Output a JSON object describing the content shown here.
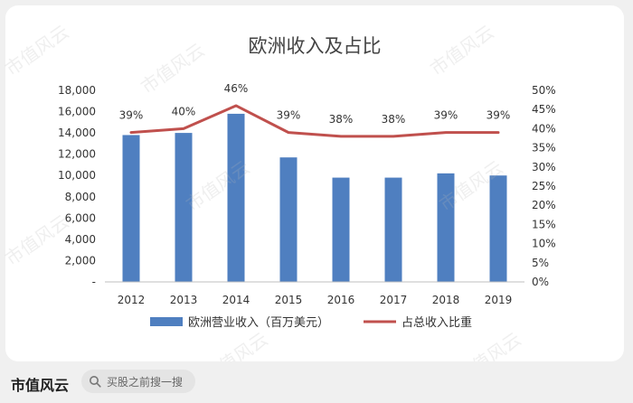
{
  "chart_data": {
    "type": "bar+line",
    "title": "欧洲收入及占比",
    "categories": [
      "2012",
      "2013",
      "2014",
      "2015",
      "2016",
      "2017",
      "2018",
      "2019"
    ],
    "series": [
      {
        "name": "欧洲营业收入（百万美元）",
        "type": "bar",
        "axis": "left",
        "color": "#4f7fc0",
        "values": [
          13800,
          14000,
          15800,
          11700,
          9800,
          9800,
          10200,
          10000
        ]
      },
      {
        "name": "占总收入比重",
        "type": "line",
        "axis": "right",
        "color": "#c0504d",
        "values": [
          0.39,
          0.4,
          0.46,
          0.39,
          0.38,
          0.38,
          0.39,
          0.39
        ],
        "labels": [
          "39%",
          "40%",
          "46%",
          "39%",
          "38%",
          "38%",
          "39%",
          "39%"
        ]
      }
    ],
    "y_left": {
      "ylim": [
        0,
        18000
      ],
      "ticks": [
        0,
        2000,
        4000,
        6000,
        8000,
        10000,
        12000,
        14000,
        16000,
        18000
      ],
      "tick_labels": [
        "-",
        "2,000",
        "4,000",
        "6,000",
        "8,000",
        "10,000",
        "12,000",
        "14,000",
        "16,000",
        "18,000"
      ]
    },
    "y_right": {
      "ylim": [
        0,
        0.5
      ],
      "ticks": [
        0,
        0.05,
        0.1,
        0.15,
        0.2,
        0.25,
        0.3,
        0.35,
        0.4,
        0.45,
        0.5
      ],
      "tick_labels": [
        "0%",
        "5%",
        "10%",
        "15%",
        "20%",
        "25%",
        "30%",
        "35%",
        "40%",
        "45%",
        "50%"
      ]
    },
    "grid": false,
    "legend_position": "bottom"
  },
  "watermark": "市值风云",
  "footer": {
    "brand": "市值风云",
    "search_placeholder": "买股之前搜一搜",
    "search_icon": "search-icon"
  }
}
